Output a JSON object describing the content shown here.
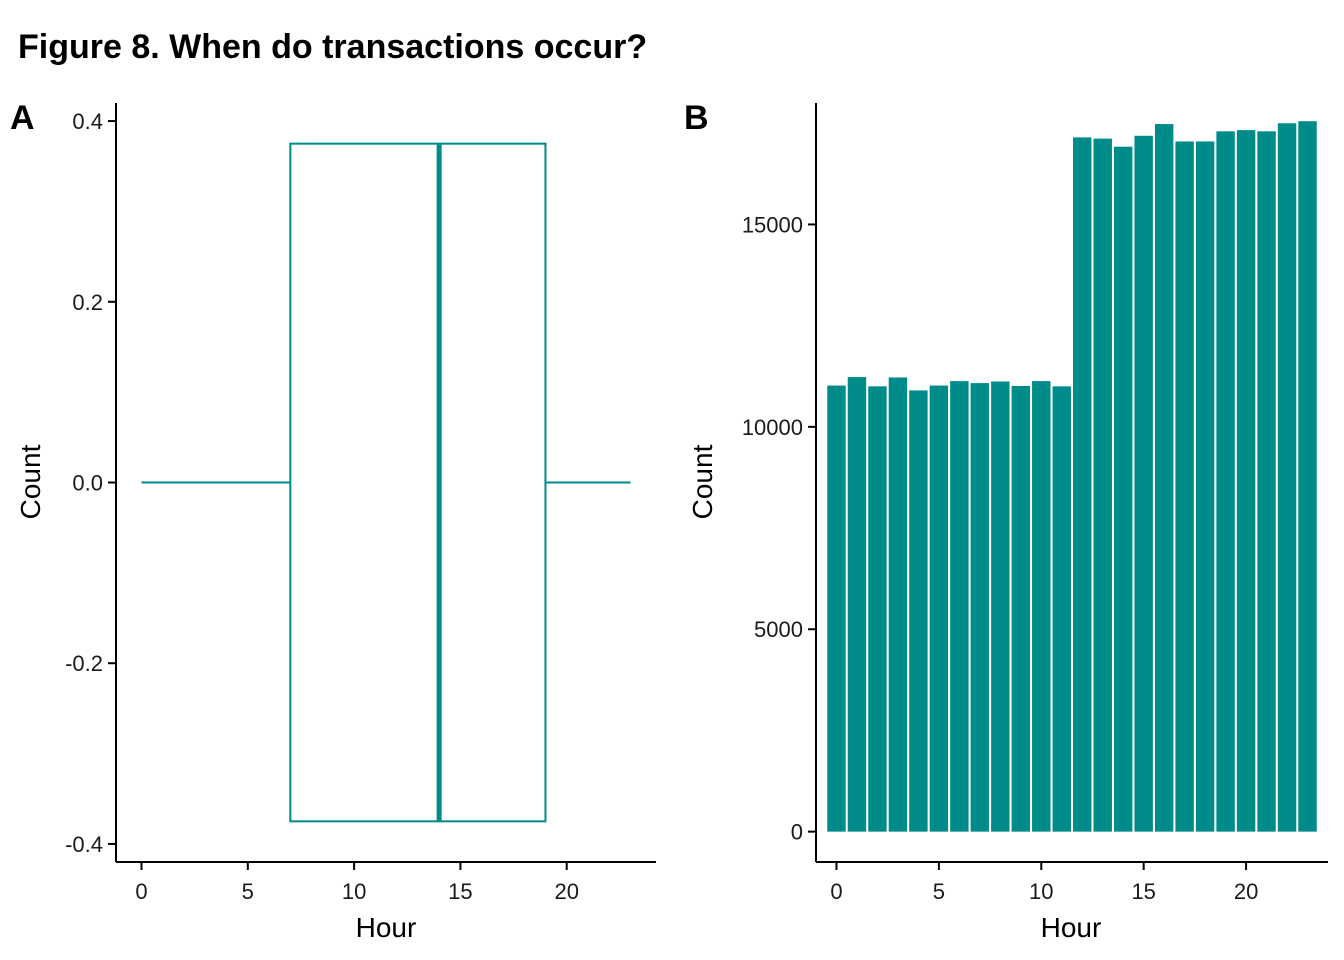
{
  "figure": {
    "title": "Figure 8. When do transactions occur?",
    "accent_color": "#008b8b"
  },
  "chart_data": [
    {
      "type": "boxplot",
      "tag": "A",
      "xlabel": "Hour",
      "ylabel": "Count",
      "xlim": [
        -1.2,
        24.2
      ],
      "ylim": [
        -0.42,
        0.42
      ],
      "xticks": [
        0,
        5,
        10,
        15,
        20
      ],
      "yticks": [
        -0.4,
        -0.2,
        0.0,
        0.2,
        0.4
      ],
      "ytick_labels": [
        "-0.4",
        "-0.2",
        "0.0",
        "0.2",
        "0.4"
      ],
      "grid": false,
      "box": {
        "min": 0,
        "q1": 7,
        "median": 14,
        "q3": 19,
        "max": 23,
        "y_half_width": 0.375
      },
      "color": "#008b8b"
    },
    {
      "type": "bar",
      "tag": "B",
      "xlabel": "Hour",
      "ylabel": "Count",
      "xlim": [
        -1.0,
        24.0
      ],
      "ylim": [
        -750,
        18000
      ],
      "xticks": [
        0,
        5,
        10,
        15,
        20
      ],
      "yticks": [
        0,
        5000,
        10000,
        15000
      ],
      "grid": false,
      "categories": [
        0,
        1,
        2,
        3,
        4,
        5,
        6,
        7,
        8,
        9,
        10,
        11,
        12,
        13,
        14,
        15,
        16,
        17,
        18,
        19,
        20,
        21,
        22,
        23
      ],
      "values": [
        11020,
        11230,
        11000,
        11220,
        10900,
        11020,
        11130,
        11080,
        11120,
        11010,
        11130,
        11000,
        17150,
        17120,
        16920,
        17190,
        17480,
        17050,
        17050,
        17300,
        17330,
        17300,
        17500,
        17550
      ],
      "color": "#008b8b"
    }
  ]
}
